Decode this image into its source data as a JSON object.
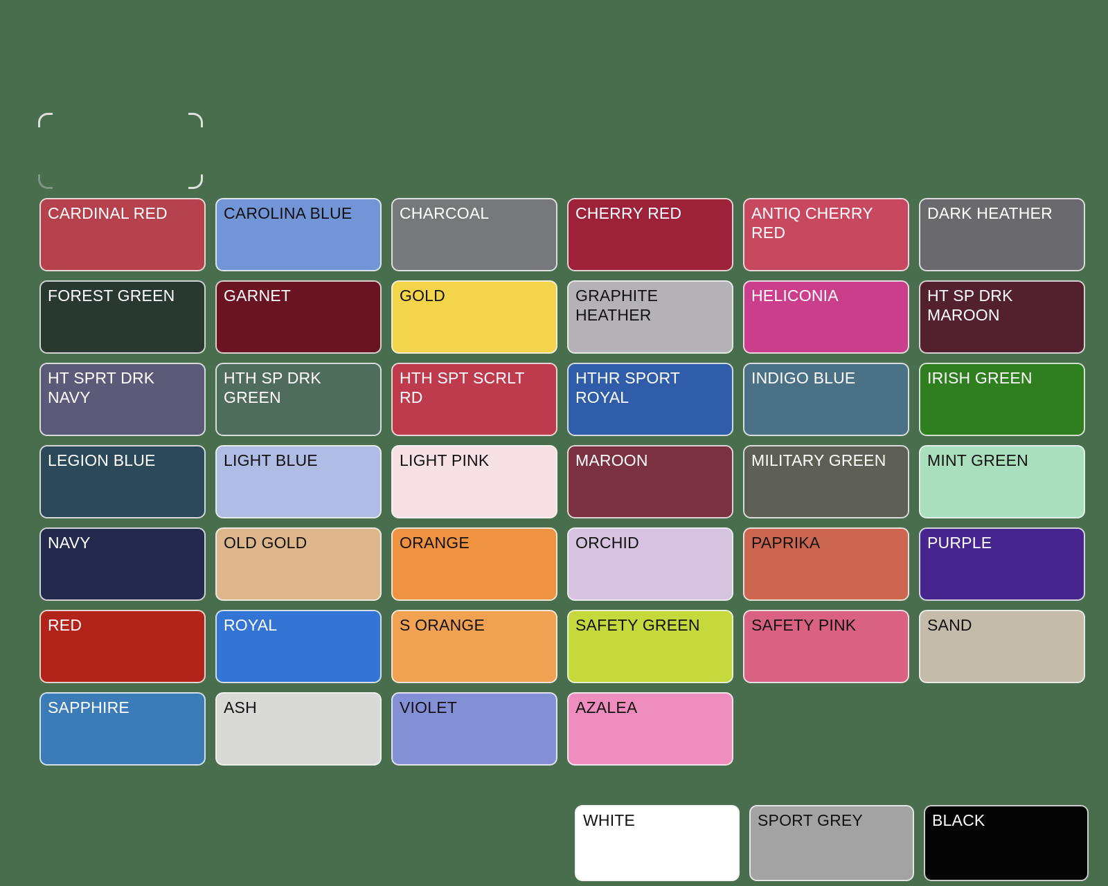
{
  "background_color": "#486E4D",
  "placeholder_swatch": {
    "label": "",
    "outline_color": "#DEE0DC"
  },
  "swatches": [
    {
      "label": "CARDINAL RED",
      "color": "#B5414C",
      "text_color": "#FFFFFF"
    },
    {
      "label": "CAROLINA BLUE",
      "color": "#7195D6",
      "text_color": "#111111"
    },
    {
      "label": "CHARCOAL",
      "color": "#77787B",
      "text_color": "#FFFFFF"
    },
    {
      "label": "CHERRY RED",
      "color": "#9C2139",
      "text_color": "#FFFFFF"
    },
    {
      "label": "ANTIQ CHERRY RED",
      "color": "#C84860",
      "text_color": "#FFFFFF"
    },
    {
      "label": "DARK HEATHER",
      "color": "#6A696E",
      "text_color": "#FFFFFF"
    },
    {
      "label": "FOREST GREEN",
      "color": "#29392F",
      "text_color": "#FFFFFF"
    },
    {
      "label": "GARNET",
      "color": "#6A1423",
      "text_color": "#FFFFFF"
    },
    {
      "label": "GOLD",
      "color": "#F4D44A",
      "text_color": "#111111"
    },
    {
      "label": "GRAPHITE HEATHER",
      "color": "#B4B2B7",
      "text_color": "#111111"
    },
    {
      "label": "HELICONIA",
      "color": "#CA3E8C",
      "text_color": "#FFFFFF"
    },
    {
      "label": "HT SP DRK MAROON",
      "color": "#53212E",
      "text_color": "#FFFFFF"
    },
    {
      "label": "HT SPRT DRK NAVY",
      "color": "#5C5A79",
      "text_color": "#FFFFFF"
    },
    {
      "label": "HTH SP DRK GREEN",
      "color": "#4F6C5D",
      "text_color": "#FFFFFF"
    },
    {
      "label": "HTH SPT SCRLT RD",
      "color": "#BE3A4D",
      "text_color": "#FFFFFF"
    },
    {
      "label": "HTHR SPORT ROYAL",
      "color": "#2F5DA9",
      "text_color": "#FFFFFF"
    },
    {
      "label": "INDIGO BLUE",
      "color": "#4B7187",
      "text_color": "#FFFFFF"
    },
    {
      "label": "IRISH GREEN",
      "color": "#2F7E1F",
      "text_color": "#FFFFFF"
    },
    {
      "label": "LEGION BLUE",
      "color": "#2C4959",
      "text_color": "#FFFFFF"
    },
    {
      "label": "LIGHT BLUE",
      "color": "#AFBCE4",
      "text_color": "#111111"
    },
    {
      "label": "LIGHT PINK",
      "color": "#F8E1E4",
      "text_color": "#111111"
    },
    {
      "label": "MAROON",
      "color": "#7B3140",
      "text_color": "#FFFFFF"
    },
    {
      "label": "MILITARY GREEN",
      "color": "#5F6055",
      "text_color": "#FFFFFF"
    },
    {
      "label": "MINT GREEN",
      "color": "#A9DFBD",
      "text_color": "#111111"
    },
    {
      "label": "NAVY",
      "color": "#232A4D",
      "text_color": "#FFFFFF"
    },
    {
      "label": "OLD GOLD",
      "color": "#DDB78C",
      "text_color": "#111111"
    },
    {
      "label": "ORANGE",
      "color": "#EF9342",
      "text_color": "#111111"
    },
    {
      "label": "ORCHID",
      "color": "#D6C3DF",
      "text_color": "#111111"
    },
    {
      "label": "PAPRIKA",
      "color": "#CC6651",
      "text_color": "#111111"
    },
    {
      "label": "PURPLE",
      "color": "#46258E",
      "text_color": "#FFFFFF"
    },
    {
      "label": "RED",
      "color": "#B2231A",
      "text_color": "#FFFFFF"
    },
    {
      "label": "ROYAL",
      "color": "#3474D4",
      "text_color": "#FFFFFF"
    },
    {
      "label": "S ORANGE",
      "color": "#F0A152",
      "text_color": "#111111"
    },
    {
      "label": "SAFETY GREEN",
      "color": "#C5D93D",
      "text_color": "#111111"
    },
    {
      "label": "SAFETY PINK",
      "color": "#D96182",
      "text_color": "#111111"
    },
    {
      "label": "SAND",
      "color": "#C5BBAA",
      "text_color": "#111111"
    },
    {
      "label": "SAPPHIRE",
      "color": "#3B7BB8",
      "text_color": "#FFFFFF"
    },
    {
      "label": "ASH",
      "color": "#D9D9D7",
      "text_color": "#111111"
    },
    {
      "label": "VIOLET",
      "color": "#8490D6",
      "text_color": "#111111"
    },
    {
      "label": "AZALEA",
      "color": "#EF8EBE",
      "text_color": "#111111"
    }
  ],
  "basic_swatches": [
    {
      "label": "WHITE",
      "color": "#FFFFFF",
      "text_color": "#111111"
    },
    {
      "label": "SPORT GREY",
      "color": "#A3A3A3",
      "text_color": "#111111"
    },
    {
      "label": "BLACK",
      "color": "#050505",
      "text_color": "#FFFFFF"
    }
  ]
}
